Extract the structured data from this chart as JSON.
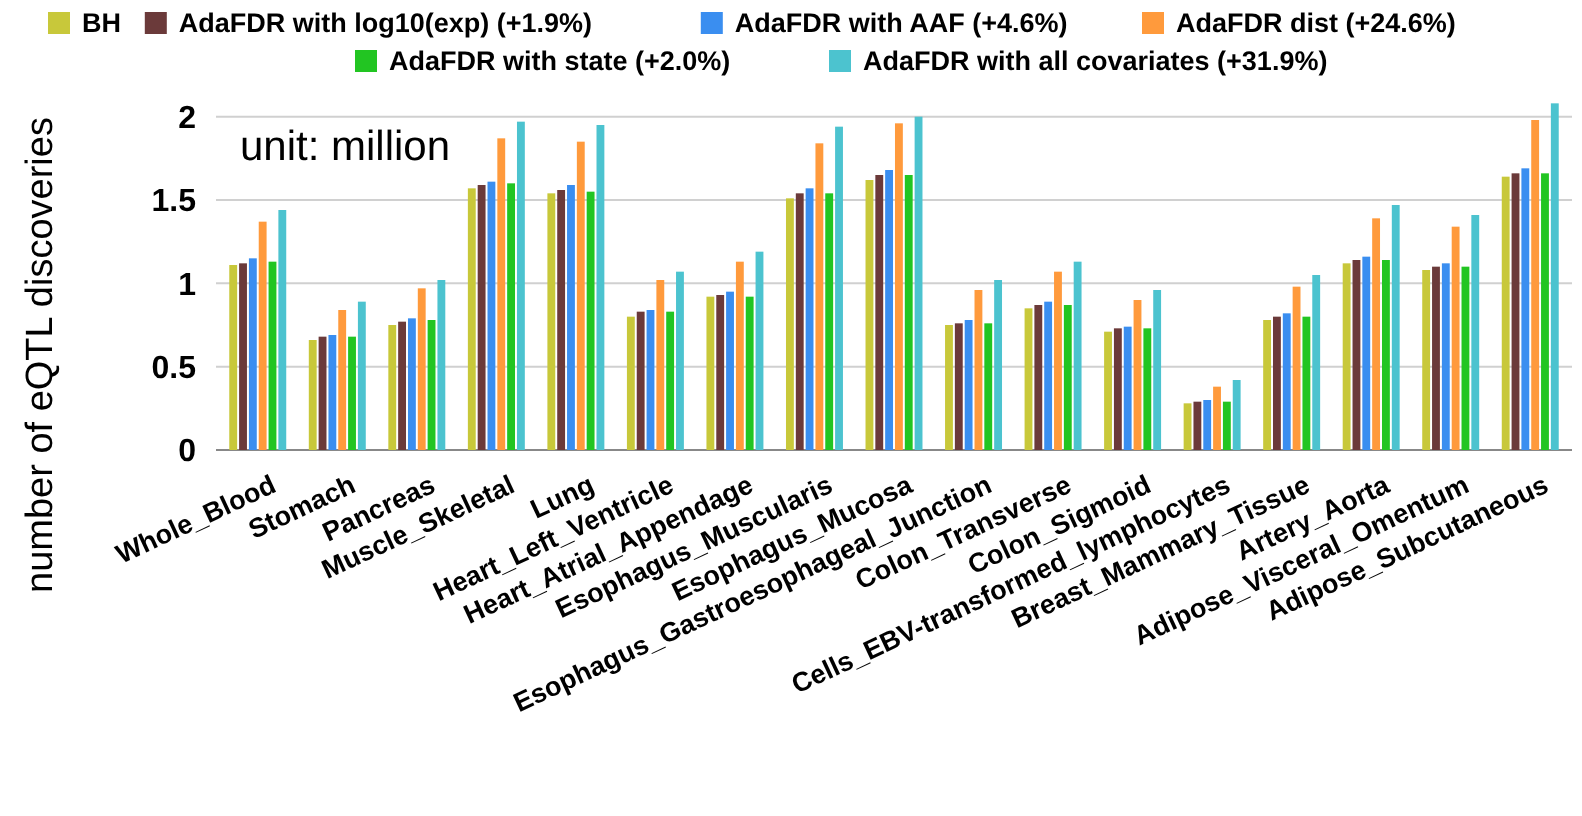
{
  "chart_data": {
    "type": "bar",
    "ylabel": "number of eQTL discoveries",
    "annotations": [
      "unit: million"
    ],
    "categories": [
      "Whole_Blood",
      "Stomach",
      "Pancreas",
      "Muscle_Skeletal",
      "Lung",
      "Heart_Left_Ventricle",
      "Heart_Atrial_Appendage",
      "Esophagus_Muscularis",
      "Esophagus_Mucosa",
      "Esophagus_Gastroesophageal_Junction",
      "Colon_Transverse",
      "Colon_Sigmoid",
      "Cells_EBV-transformed_lymphocytes",
      "Breast_Mammary_Tissue",
      "Artery_Aorta",
      "Adipose_Visceral_Omentum",
      "Adipose_Subcutaneous"
    ],
    "series": [
      {
        "name": "BH",
        "color": "#c8c83a",
        "values": [
          1.11,
          0.66,
          0.75,
          1.57,
          1.54,
          0.8,
          0.92,
          1.51,
          1.62,
          0.75,
          0.85,
          0.71,
          0.28,
          0.78,
          1.12,
          1.08,
          1.64
        ]
      },
      {
        "name": "AdaFDR with log10(exp) (+1.9%)",
        "color": "#6b3a3a",
        "values": [
          1.12,
          0.68,
          0.77,
          1.59,
          1.56,
          0.83,
          0.93,
          1.54,
          1.65,
          0.76,
          0.87,
          0.73,
          0.29,
          0.8,
          1.14,
          1.1,
          1.66
        ]
      },
      {
        "name": "AdaFDR with AAF (+4.6%)",
        "color": "#3a8ef0",
        "values": [
          1.15,
          0.69,
          0.79,
          1.61,
          1.59,
          0.84,
          0.95,
          1.57,
          1.68,
          0.78,
          0.89,
          0.74,
          0.3,
          0.82,
          1.16,
          1.12,
          1.69
        ]
      },
      {
        "name": "AdaFDR dist (+24.6%)",
        "color": "#ff9a3c",
        "values": [
          1.37,
          0.84,
          0.97,
          1.87,
          1.85,
          1.02,
          1.13,
          1.84,
          1.96,
          0.96,
          1.07,
          0.9,
          0.38,
          0.98,
          1.39,
          1.34,
          1.98
        ]
      },
      {
        "name": "AdaFDR with state (+2.0%)",
        "color": "#22c522",
        "values": [
          1.13,
          0.68,
          0.78,
          1.6,
          1.55,
          0.83,
          0.92,
          1.54,
          1.65,
          0.76,
          0.87,
          0.73,
          0.29,
          0.8,
          1.14,
          1.1,
          1.66
        ]
      },
      {
        "name": "AdaFDR with all covariates (+31.9%)",
        "color": "#4cc3cf",
        "values": [
          1.44,
          0.89,
          1.02,
          1.97,
          1.95,
          1.07,
          1.19,
          1.94,
          2.0,
          1.02,
          1.13,
          0.96,
          0.42,
          1.05,
          1.47,
          1.41,
          2.08
        ]
      }
    ],
    "ylim": [
      0,
      2.1
    ],
    "yticks": [
      0,
      0.5,
      1,
      1.5,
      2
    ],
    "grid": "y",
    "legend": "top"
  }
}
